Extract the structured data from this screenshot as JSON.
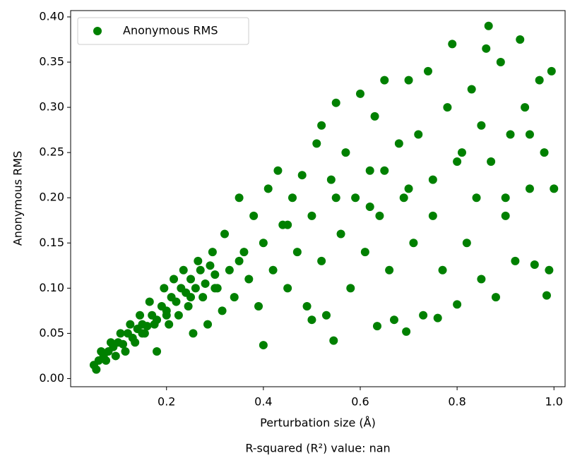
{
  "chart_data": {
    "type": "scatter",
    "xlabel": "Perturbation size (Å)",
    "ylabel": "Anonymous RMS",
    "annotation": "R-squared (R²) value: nan",
    "legend": "upper left",
    "xlim": [
      0.002,
      1.023
    ],
    "ylim": [
      -0.009,
      0.407
    ],
    "xticks": [
      0.2,
      0.4,
      0.6,
      0.8,
      {
        "value": 1,
        "label": "1.0"
      }
    ],
    "yticks": [
      {
        "value": 0,
        "label": "0.00"
      },
      {
        "value": 0.05,
        "label": "0.05"
      },
      {
        "value": 0.1,
        "label": "0.10"
      },
      {
        "value": 0.15,
        "label": "0.15"
      },
      {
        "value": 0.2,
        "label": "0.20"
      },
      {
        "value": 0.25,
        "label": "0.25"
      },
      {
        "value": 0.3,
        "label": "0.30"
      },
      {
        "value": 0.35,
        "label": "0.35"
      },
      {
        "value": 0.4,
        "label": "0.40"
      }
    ],
    "x": [
      0.05,
      0.06,
      0.07,
      0.08,
      0.09,
      0.1,
      0.11,
      0.12,
      0.13,
      0.14,
      0.15,
      0.16,
      0.17,
      0.18,
      0.19,
      0.2,
      0.21,
      0.22,
      0.23,
      0.24,
      0.25,
      0.26,
      0.27,
      0.28,
      0.29,
      0.3,
      0.055,
      0.065,
      0.075,
      0.085,
      0.095,
      0.105,
      0.115,
      0.125,
      0.135,
      0.145,
      0.155,
      0.165,
      0.175,
      0.18,
      0.195,
      0.205,
      0.215,
      0.225,
      0.235,
      0.245,
      0.255,
      0.265,
      0.275,
      0.285,
      0.295,
      0.305,
      0.315,
      0.32,
      0.33,
      0.34,
      0.35,
      0.36,
      0.37,
      0.38,
      0.39,
      0.4,
      0.4,
      0.41,
      0.42,
      0.43,
      0.44,
      0.45,
      0.46,
      0.47,
      0.48,
      0.49,
      0.5,
      0.5,
      0.51,
      0.52,
      0.52,
      0.53,
      0.54,
      0.545,
      0.55,
      0.56,
      0.57,
      0.58,
      0.59,
      0.6,
      0.61,
      0.62,
      0.63,
      0.635,
      0.64,
      0.65,
      0.66,
      0.67,
      0.68,
      0.69,
      0.695,
      0.7,
      0.71,
      0.72,
      0.73,
      0.74,
      0.75,
      0.76,
      0.77,
      0.78,
      0.79,
      0.8,
      0.81,
      0.82,
      0.83,
      0.84,
      0.85,
      0.86,
      0.865,
      0.87,
      0.88,
      0.89,
      0.9,
      0.91,
      0.92,
      0.93,
      0.94,
      0.95,
      0.96,
      0.97,
      0.98,
      0.985,
      0.99,
      0.995,
      1.0,
      0.62,
      0.7,
      0.8,
      0.9,
      0.95,
      0.85,
      0.75,
      0.65,
      0.55,
      0.45,
      0.35,
      0.3,
      0.25,
      0.2,
      0.15
    ],
    "series": [
      {
        "name": "Anonymous RMS",
        "color": "#008000",
        "values": [
          0.015,
          0.02,
          0.025,
          0.03,
          0.035,
          0.04,
          0.038,
          0.05,
          0.045,
          0.055,
          0.06,
          0.058,
          0.07,
          0.065,
          0.08,
          0.075,
          0.09,
          0.085,
          0.1,
          0.095,
          0.11,
          0.1,
          0.12,
          0.105,
          0.125,
          0.115,
          0.01,
          0.03,
          0.02,
          0.04,
          0.025,
          0.05,
          0.03,
          0.06,
          0.04,
          0.07,
          0.05,
          0.085,
          0.06,
          0.03,
          0.1,
          0.06,
          0.11,
          0.07,
          0.12,
          0.08,
          0.05,
          0.13,
          0.09,
          0.06,
          0.14,
          0.1,
          0.075,
          0.16,
          0.12,
          0.09,
          0.2,
          0.14,
          0.11,
          0.18,
          0.08,
          0.037,
          0.15,
          0.21,
          0.12,
          0.23,
          0.17,
          0.1,
          0.2,
          0.14,
          0.225,
          0.08,
          0.18,
          0.065,
          0.26,
          0.28,
          0.13,
          0.07,
          0.22,
          0.042,
          0.305,
          0.16,
          0.25,
          0.1,
          0.2,
          0.315,
          0.14,
          0.23,
          0.29,
          0.058,
          0.18,
          0.33,
          0.12,
          0.065,
          0.26,
          0.2,
          0.052,
          0.33,
          0.15,
          0.27,
          0.07,
          0.34,
          0.22,
          0.067,
          0.12,
          0.3,
          0.37,
          0.082,
          0.25,
          0.15,
          0.32,
          0.2,
          0.11,
          0.365,
          0.39,
          0.24,
          0.09,
          0.35,
          0.18,
          0.27,
          0.13,
          0.375,
          0.3,
          0.21,
          0.126,
          0.33,
          0.25,
          0.092,
          0.12,
          0.34,
          0.21,
          0.19,
          0.21,
          0.24,
          0.2,
          0.27,
          0.28,
          0.18,
          0.23,
          0.2,
          0.17,
          0.13,
          0.1,
          0.09,
          0.07,
          0.05
        ]
      }
    ]
  }
}
